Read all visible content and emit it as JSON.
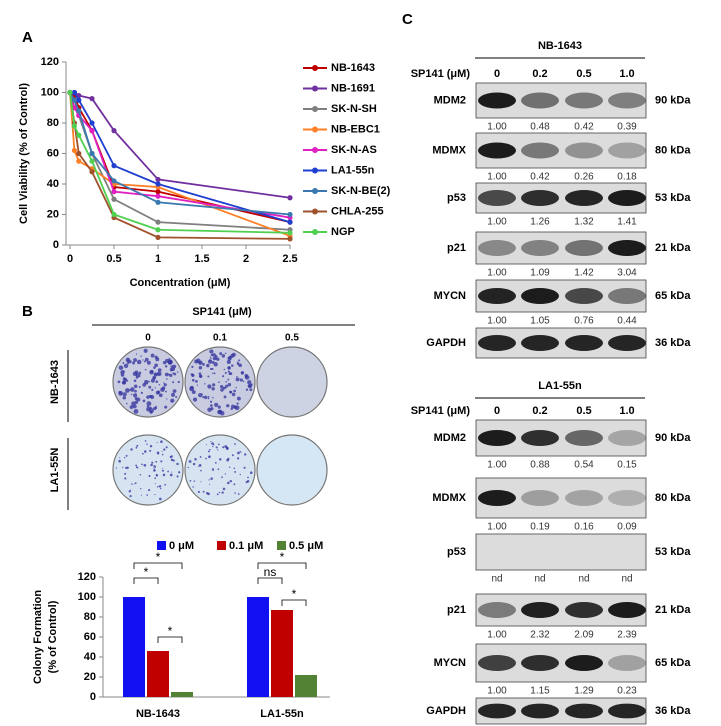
{
  "panels": {
    "a": "A",
    "b": "B",
    "c": "C"
  },
  "chart_data": [
    {
      "type": "line",
      "x_label": "Concentration (μM)",
      "y_label": "Cell Viability (% of Control)",
      "x": [
        0,
        0.05,
        0.1,
        0.25,
        0.5,
        1,
        2.5
      ],
      "xlim": [
        0,
        2.5
      ],
      "xticks": [
        0,
        0.5,
        1,
        1.5,
        2,
        2.5
      ],
      "ylim": [
        0,
        120
      ],
      "yticks": [
        0,
        20,
        40,
        60,
        80,
        100,
        120
      ],
      "series": [
        {
          "name": "NB-1643",
          "color": "#c00000",
          "values": [
            100,
            98,
            90,
            75,
            38,
            35,
            15
          ]
        },
        {
          "name": "NB-1691",
          "color": "#7030a0",
          "values": [
            100,
            100,
            98,
            96,
            75,
            43,
            31
          ]
        },
        {
          "name": "SK-N-SH",
          "color": "#7f7f7f",
          "values": [
            100,
            95,
            85,
            60,
            30,
            15,
            10
          ]
        },
        {
          "name": "NB-EBC1",
          "color": "#ff7f27",
          "values": [
            100,
            62,
            55,
            50,
            40,
            38,
            6
          ]
        },
        {
          "name": "SK-N-AS",
          "color": "#e020c0",
          "values": [
            100,
            90,
            85,
            75,
            35,
            32,
            18
          ]
        },
        {
          "name": "LA1-55n",
          "color": "#1f3fd0",
          "values": [
            100,
            100,
            95,
            80,
            52,
            40,
            15
          ]
        },
        {
          "name": "SK-N-BE(2)",
          "color": "#3a78b0",
          "values": [
            100,
            95,
            88,
            60,
            42,
            28,
            20
          ]
        },
        {
          "name": "CHLA-255",
          "color": "#a0522d",
          "values": [
            100,
            80,
            60,
            48,
            18,
            5,
            4
          ]
        },
        {
          "name": "NGP",
          "color": "#50d050",
          "values": [
            100,
            78,
            72,
            55,
            20,
            10,
            8
          ]
        }
      ]
    },
    {
      "type": "bar",
      "y_label": [
        "Colony Formation",
        "(% of Control)"
      ],
      "categories": [
        "NB-1643",
        "LA1-55n"
      ],
      "ylim": [
        0,
        120
      ],
      "yticks": [
        0,
        20,
        40,
        60,
        80,
        100,
        120
      ],
      "series": [
        {
          "name": "0 μM",
          "color": "#1010f0",
          "values": [
            100,
            100
          ]
        },
        {
          "name": "0.1 μM",
          "color": "#c00000",
          "values": [
            46,
            87
          ]
        },
        {
          "name": "0.5 μM",
          "color": "#548235",
          "values": [
            5,
            22
          ]
        }
      ],
      "annotations": [
        "*",
        "*",
        "*",
        "ns",
        "*",
        "*"
      ]
    }
  ],
  "colony": {
    "treatment": "SP141 (μM)",
    "doses": [
      "0",
      "0.1",
      "0.5"
    ],
    "rows": [
      "NB-1643",
      "LA1-55N"
    ]
  },
  "blots": [
    {
      "title": "NB-1643",
      "treatment": "SP141 (μM)",
      "doses": [
        "0",
        "0.2",
        "0.5",
        "1.0"
      ],
      "rows": [
        {
          "protein": "MDM2",
          "size": "90 kDa",
          "quant": [
            "1.00",
            "0.48",
            "0.42",
            "0.39"
          ]
        },
        {
          "protein": "MDMX",
          "size": "80 kDa",
          "quant": [
            "1.00",
            "0.42",
            "0.26",
            "0.18"
          ]
        },
        {
          "protein": "p53",
          "size": "53 kDa",
          "quant": [
            "1.00",
            "1.26",
            "1.32",
            "1.41"
          ]
        },
        {
          "protein": "p21",
          "size": "21 kDa",
          "quant": [
            "1.00",
            "1.09",
            "1.42",
            "3.04"
          ]
        },
        {
          "protein": "MYCN",
          "size": "65 kDa",
          "quant": [
            "1.00",
            "1.05",
            "0.76",
            "0.44"
          ]
        },
        {
          "protein": "GAPDH",
          "size": "36 kDa"
        }
      ]
    },
    {
      "title": "LA1-55n",
      "treatment": "SP141 (μM)",
      "doses": [
        "0",
        "0.2",
        "0.5",
        "1.0"
      ],
      "rows": [
        {
          "protein": "MDM2",
          "size": "90 kDa",
          "quant": [
            "1.00",
            "0.88",
            "0.54",
            "0.15"
          ]
        },
        {
          "protein": "MDMX",
          "size": "80 kDa",
          "quant": [
            "1.00",
            "0.19",
            "0.16",
            "0.09"
          ]
        },
        {
          "protein": "p53",
          "size": "53 kDa",
          "quant": [
            "nd",
            "nd",
            "nd",
            "nd"
          ]
        },
        {
          "protein": "p21",
          "size": "21 kDa",
          "quant": [
            "1.00",
            "2.32",
            "2.09",
            "2.39"
          ]
        },
        {
          "protein": "MYCN",
          "size": "65 kDa",
          "quant": [
            "1.00",
            "1.15",
            "1.29",
            "0.23"
          ]
        },
        {
          "protein": "GAPDH",
          "size": "36 kDa"
        }
      ]
    }
  ]
}
